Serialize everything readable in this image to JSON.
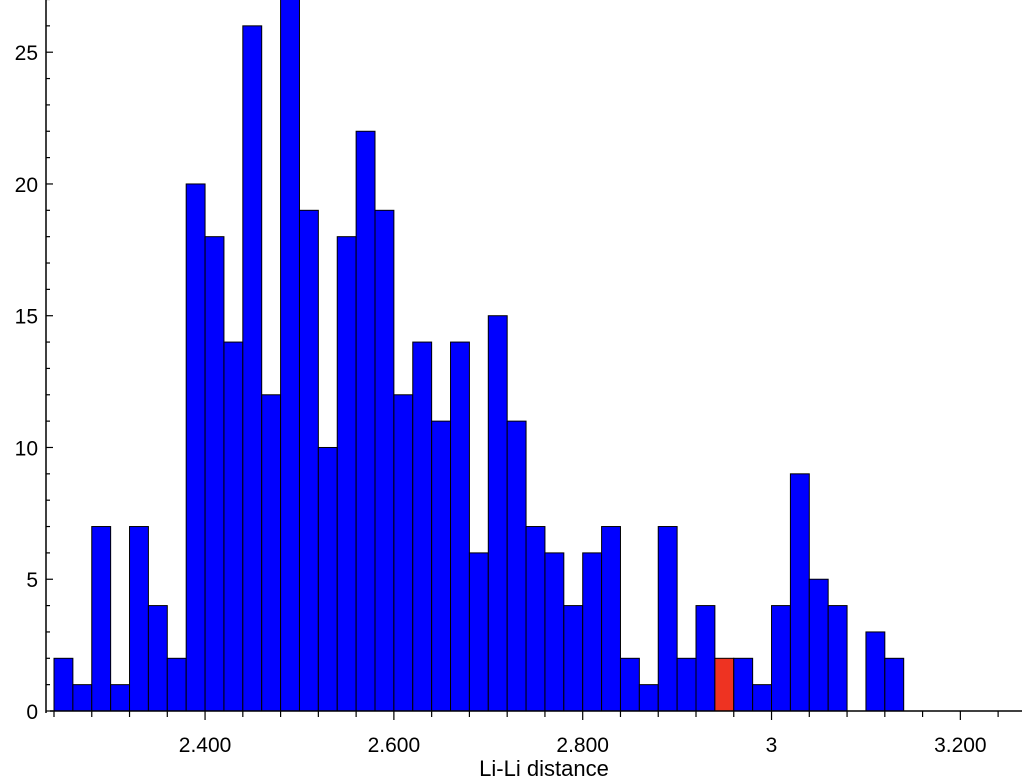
{
  "chart_data": {
    "type": "bar",
    "xlabel": "Li-Li distance",
    "ylabel": "",
    "title": "",
    "grid": false,
    "legend": "none",
    "bin_width": 0.02,
    "bins": [
      {
        "start": 2.24,
        "value": 2,
        "color": "blue"
      },
      {
        "start": 2.26,
        "value": 1,
        "color": "blue"
      },
      {
        "start": 2.28,
        "value": 7,
        "color": "blue"
      },
      {
        "start": 2.3,
        "value": 1,
        "color": "blue"
      },
      {
        "start": 2.32,
        "value": 7,
        "color": "blue"
      },
      {
        "start": 2.34,
        "value": 4,
        "color": "blue"
      },
      {
        "start": 2.36,
        "value": 2,
        "color": "blue"
      },
      {
        "start": 2.38,
        "value": 20,
        "color": "blue"
      },
      {
        "start": 2.4,
        "value": 18,
        "color": "blue"
      },
      {
        "start": 2.42,
        "value": 14,
        "color": "blue"
      },
      {
        "start": 2.44,
        "value": 26,
        "color": "blue"
      },
      {
        "start": 2.46,
        "value": 12,
        "color": "blue"
      },
      {
        "start": 2.48,
        "value": 27,
        "color": "blue"
      },
      {
        "start": 2.5,
        "value": 19,
        "color": "blue"
      },
      {
        "start": 2.52,
        "value": 10,
        "color": "blue"
      },
      {
        "start": 2.54,
        "value": 18,
        "color": "blue"
      },
      {
        "start": 2.56,
        "value": 22,
        "color": "blue"
      },
      {
        "start": 2.58,
        "value": 19,
        "color": "blue"
      },
      {
        "start": 2.6,
        "value": 12,
        "color": "blue"
      },
      {
        "start": 2.62,
        "value": 14,
        "color": "blue"
      },
      {
        "start": 2.64,
        "value": 11,
        "color": "blue"
      },
      {
        "start": 2.66,
        "value": 14,
        "color": "blue"
      },
      {
        "start": 2.68,
        "value": 6,
        "color": "blue"
      },
      {
        "start": 2.7,
        "value": 15,
        "color": "blue"
      },
      {
        "start": 2.72,
        "value": 11,
        "color": "blue"
      },
      {
        "start": 2.74,
        "value": 7,
        "color": "blue"
      },
      {
        "start": 2.76,
        "value": 6,
        "color": "blue"
      },
      {
        "start": 2.78,
        "value": 4,
        "color": "blue"
      },
      {
        "start": 2.8,
        "value": 6,
        "color": "blue"
      },
      {
        "start": 2.82,
        "value": 7,
        "color": "blue"
      },
      {
        "start": 2.84,
        "value": 2,
        "color": "blue"
      },
      {
        "start": 2.86,
        "value": 1,
        "color": "blue"
      },
      {
        "start": 2.88,
        "value": 7,
        "color": "blue"
      },
      {
        "start": 2.9,
        "value": 2,
        "color": "blue"
      },
      {
        "start": 2.92,
        "value": 4,
        "color": "blue"
      },
      {
        "start": 2.94,
        "value": 2,
        "color": "red"
      },
      {
        "start": 2.96,
        "value": 2,
        "color": "blue"
      },
      {
        "start": 2.98,
        "value": 1,
        "color": "blue"
      },
      {
        "start": 3.0,
        "value": 4,
        "color": "blue"
      },
      {
        "start": 3.02,
        "value": 9,
        "color": "blue"
      },
      {
        "start": 3.04,
        "value": 5,
        "color": "blue"
      },
      {
        "start": 3.06,
        "value": 4,
        "color": "blue"
      },
      {
        "start": 3.1,
        "value": 3,
        "color": "blue"
      },
      {
        "start": 3.12,
        "value": 2,
        "color": "blue"
      }
    ],
    "xlim": [
      2.24,
      3.26
    ],
    "ylim": [
      0,
      27
    ],
    "x_ticks": [
      {
        "value": 2.4,
        "label": "2.400"
      },
      {
        "value": 2.6,
        "label": "2.600"
      },
      {
        "value": 2.8,
        "label": "2.800"
      },
      {
        "value": 3.0,
        "label": "3"
      },
      {
        "value": 3.2,
        "label": "3.200"
      }
    ],
    "y_ticks": [
      {
        "value": 0,
        "label": "0"
      },
      {
        "value": 5,
        "label": "5"
      },
      {
        "value": 10,
        "label": "10"
      },
      {
        "value": 15,
        "label": "15"
      },
      {
        "value": 20,
        "label": "20"
      },
      {
        "value": 25,
        "label": "25"
      }
    ],
    "colors": {
      "blue": "#0000ff",
      "red": "#ee3322"
    }
  }
}
